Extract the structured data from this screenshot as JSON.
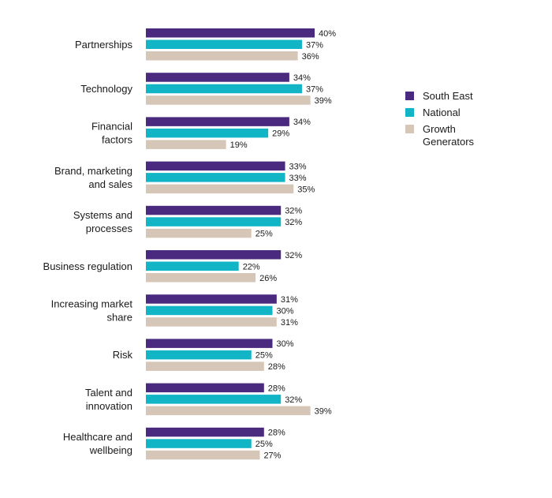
{
  "chart_data": {
    "type": "bar",
    "orientation": "horizontal",
    "title": "",
    "xlabel": "",
    "ylabel": "",
    "xlim": [
      0,
      40
    ],
    "grid": false,
    "legend_position": "right",
    "value_suffix": "%",
    "categories": [
      [
        "Partnerships"
      ],
      [
        "Technology"
      ],
      [
        "Financial",
        "factors"
      ],
      [
        "Brand, marketing",
        "and sales"
      ],
      [
        "Systems and",
        "processes"
      ],
      [
        "Business regulation"
      ],
      [
        "Increasing market",
        "share"
      ],
      [
        "Risk"
      ],
      [
        "Talent and",
        "innovation"
      ],
      [
        "Healthcare and",
        "wellbeing"
      ]
    ],
    "series": [
      {
        "name": "South East",
        "color": "#4a2a7e",
        "values": [
          40,
          34,
          34,
          33,
          32,
          32,
          31,
          30,
          28,
          28
        ]
      },
      {
        "name": "National",
        "color": "#12b5c6",
        "values": [
          37,
          37,
          29,
          33,
          32,
          22,
          30,
          25,
          32,
          25
        ]
      },
      {
        "name": "Growth Generators",
        "legend_lines": [
          "Growth",
          "Generators"
        ],
        "color": "#d5c6b8",
        "values": [
          36,
          39,
          19,
          35,
          25,
          26,
          31,
          28,
          39,
          27
        ]
      }
    ]
  }
}
